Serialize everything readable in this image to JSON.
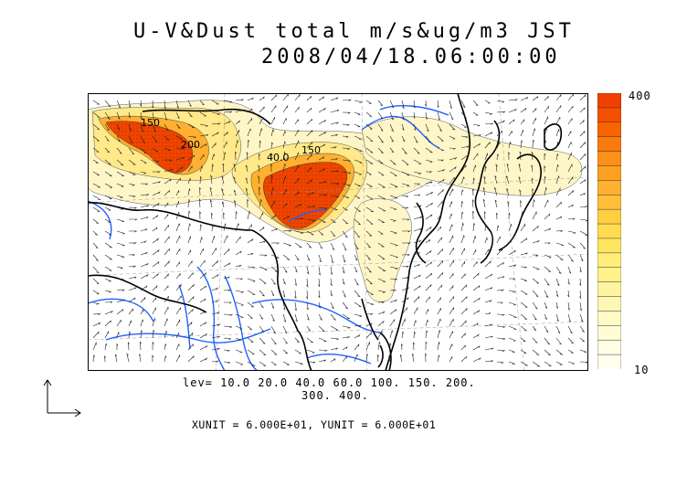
{
  "title": {
    "line1": "U-V&Dust total m/s&ug/m3 JST",
    "line2": "2008/04/18.06:00:00"
  },
  "map": {
    "contour_labels": [
      "150",
      "200",
      "40.0",
      "150"
    ],
    "dust_colors": {
      "c10": "#fffbe0",
      "c20": "#fff4b8",
      "c40": "#ffe97a",
      "c60": "#ffd24a",
      "c100": "#ffb030",
      "c150": "#ff8a1e",
      "c200": "#ff6010",
      "c300": "#ff4400",
      "c400": "#f03a00"
    },
    "coast_color": "#000000",
    "river_color": "#2060ff",
    "grid_color": "#888888"
  },
  "colorbar": {
    "max_label": "400",
    "min_label": "10",
    "colors": [
      "#f04000",
      "#f45000",
      "#f86400",
      "#fa7a10",
      "#fc9018",
      "#fda020",
      "#feb030",
      "#ffc038",
      "#ffcf40",
      "#ffdc50",
      "#ffe660",
      "#ffee78",
      "#fff28a",
      "#fff5a0",
      "#fff8b4",
      "#fffac6",
      "#fffcd6",
      "#fffde4",
      "#fffef0"
    ]
  },
  "legend": {
    "levels_line1": "lev= 10.0 20.0 40.0 60.0 100. 150. 200.",
    "levels_line2": "300. 400."
  },
  "units": {
    "text": "XUNIT = 6.000E+01, YUNIT = 6.000E+01"
  }
}
